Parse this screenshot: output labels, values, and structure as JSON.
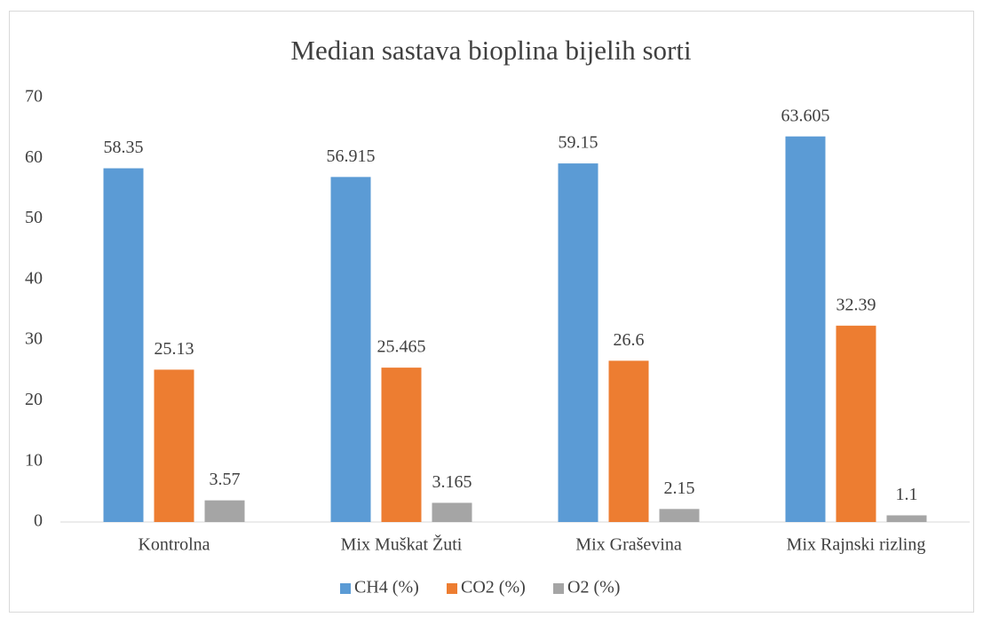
{
  "chart_data": {
    "type": "bar",
    "title": "Median sastava bioplina bijelih sorti",
    "categories": [
      "Kontrolna",
      "Mix Muškat Žuti",
      "Mix Graševina",
      "Mix Rajnski rizling"
    ],
    "series": [
      {
        "name": "CH4 (%)",
        "color": "#5b9bd5",
        "values": [
          58.35,
          56.915,
          59.15,
          63.605
        ]
      },
      {
        "name": "CO2 (%)",
        "color": "#ed7d31",
        "values": [
          25.13,
          25.465,
          26.6,
          32.39
        ]
      },
      {
        "name": "O2 (%)",
        "color": "#a5a5a5",
        "values": [
          3.57,
          3.165,
          2.15,
          1.1
        ]
      }
    ],
    "ylim": [
      0,
      70
    ],
    "yticks": [
      0,
      10,
      20,
      30,
      40,
      50,
      60,
      70
    ],
    "grid": false,
    "legend": "bottom"
  }
}
